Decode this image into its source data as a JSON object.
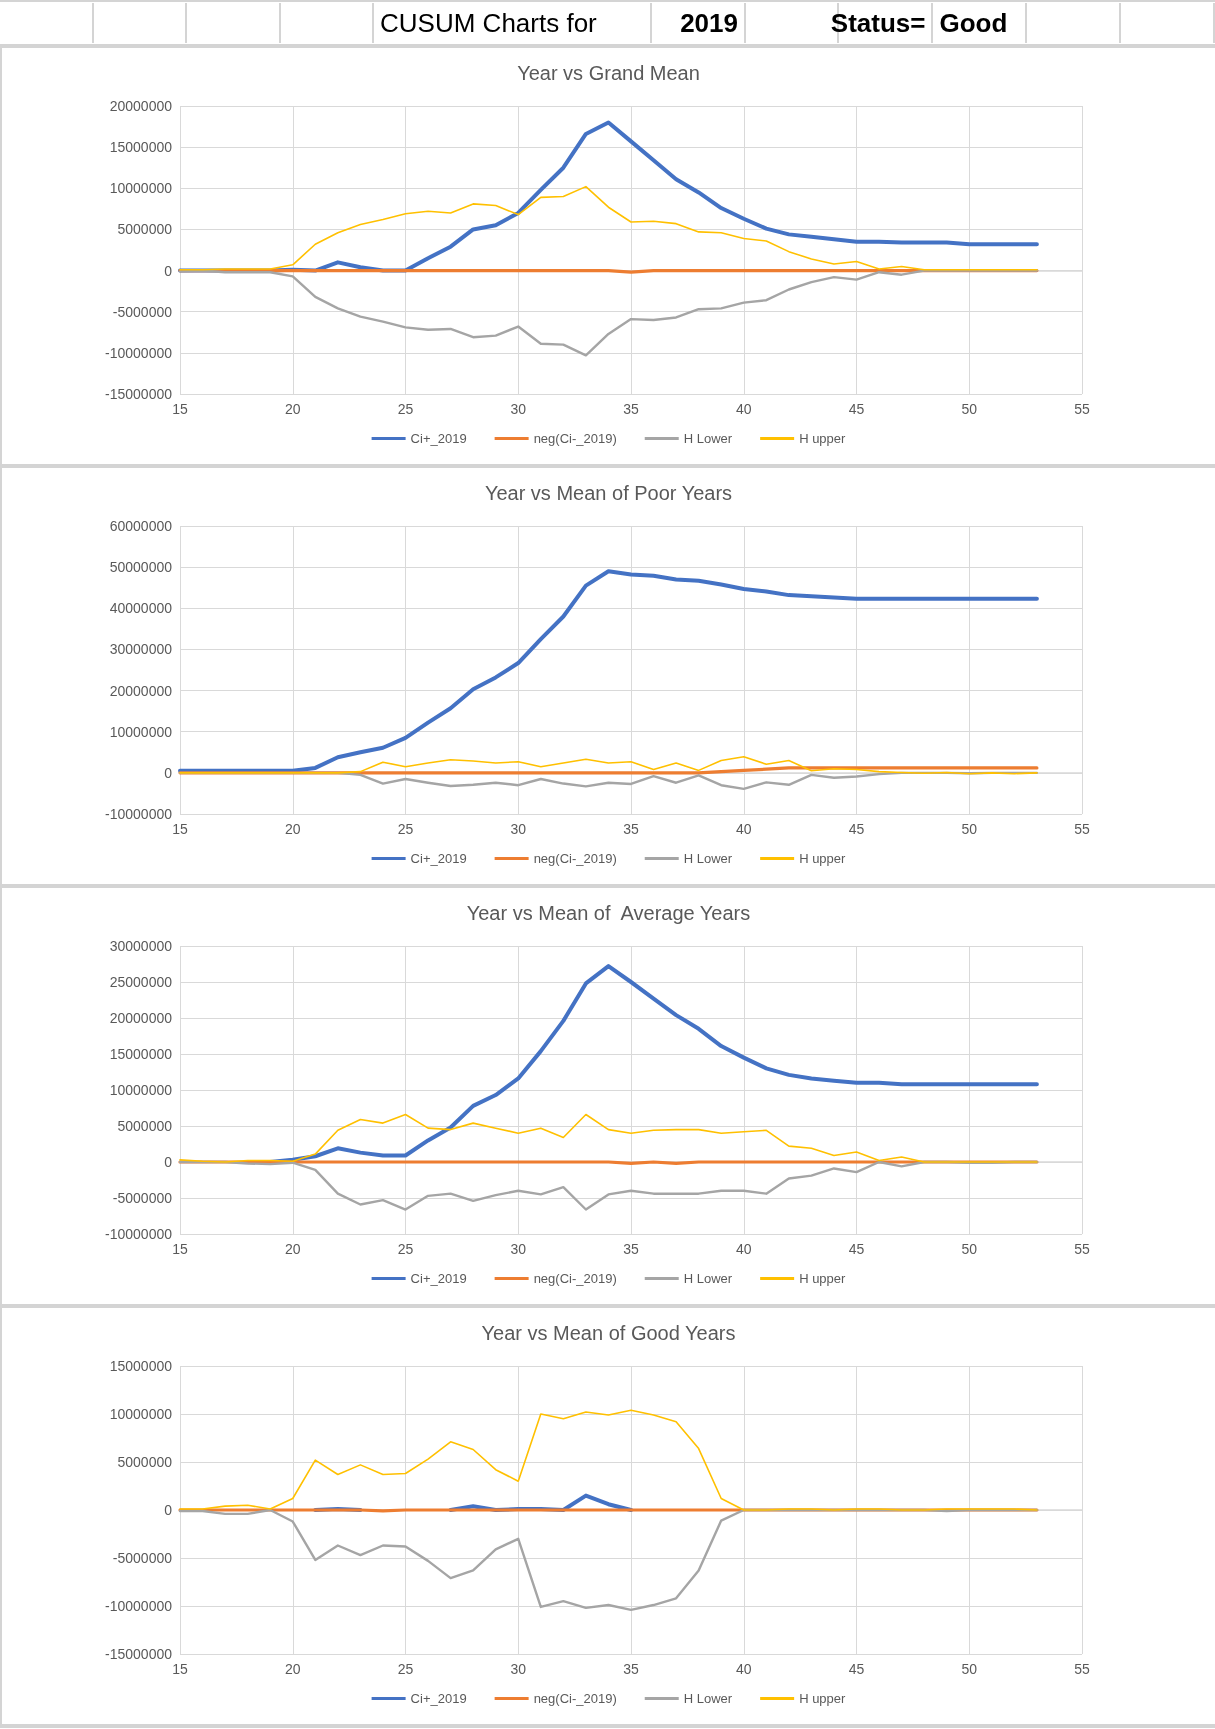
{
  "chart_data": [
    {
      "type": "other",
      "annotations": [
        "CUSUM Charts for",
        "2019",
        "Status=",
        "Good"
      ]
    },
    {
      "type": "line",
      "title": "Year vs Grand Mean",
      "x": [
        15,
        16,
        17,
        18,
        19,
        20,
        21,
        22,
        23,
        24,
        25,
        26,
        27,
        28,
        29,
        30,
        31,
        32,
        33,
        34,
        35,
        36,
        37,
        38,
        39,
        40,
        41,
        42,
        43,
        44,
        45,
        46,
        47,
        48,
        49,
        50,
        51,
        52,
        53
      ],
      "xlim": [
        15,
        55
      ],
      "xticks": [
        15,
        20,
        25,
        30,
        35,
        40,
        45,
        50,
        55
      ],
      "ylim": [
        -15000000,
        20000000
      ],
      "yticks": [
        -15000000,
        -10000000,
        -5000000,
        0,
        5000000,
        10000000,
        15000000,
        20000000
      ],
      "grid": true,
      "legend": "bottom",
      "marker": "none",
      "line_style": "solid",
      "series": [
        {
          "name": "Ci+_2019",
          "color": "#4472c4",
          "values": [
            0,
            0,
            0,
            0,
            0,
            100000.0,
            0,
            1000000.0,
            400000.0,
            0,
            0,
            1500000.0,
            2900000.0,
            5000000.0,
            5500000.0,
            7000000.0,
            9800000.0,
            12500000.0,
            16600000.0,
            18000000.0,
            15700000.0,
            13400000.0,
            11100000.0,
            9500000.0,
            7600000.0,
            6300000.0,
            5100000.0,
            4400000.0,
            4100000.0,
            3800000.0,
            3500000.0,
            3500000.0,
            3400000.0,
            3400000.0,
            3400000.0,
            3200000.0,
            3200000.0,
            3200000.0,
            3200000.0
          ]
        },
        {
          "name": "neg(Ci-_2019)",
          "color": "#ed7d31",
          "values": [
            0,
            0,
            0,
            0,
            0,
            0,
            0,
            0,
            0,
            0,
            0,
            0,
            0,
            0,
            0,
            0,
            0,
            0,
            0,
            0,
            -200000.0,
            0,
            0,
            0,
            0,
            0,
            0,
            0,
            0,
            0,
            0,
            0,
            0,
            0,
            0,
            0,
            0,
            0,
            0
          ]
        },
        {
          "name": "H Lower",
          "color": "#a5a5a5",
          "values": [
            -100000.0,
            0,
            -200000.0,
            -200000.0,
            -200000.0,
            -700000.0,
            -3200000.0,
            -4600000.0,
            -5600000.0,
            -6200000.0,
            -6900000.0,
            -7200000.0,
            -7100000.0,
            -8100000.0,
            -7900000.0,
            -6800000.0,
            -8900000.0,
            -9000000.0,
            -10300000.0,
            -7700000.0,
            -5900000.0,
            -6000000.0,
            -5700000.0,
            -4700000.0,
            -4600000.0,
            -3900000.0,
            -3600000.0,
            -2300000.0,
            -1400000.0,
            -800000.0,
            -1100000.0,
            -200000.0,
            -500000.0,
            0,
            0,
            0,
            0,
            0,
            0
          ]
        },
        {
          "name": "H upper",
          "color": "#ffc000",
          "values": [
            100000.0,
            100000.0,
            200000.0,
            200000.0,
            200000.0,
            700000.0,
            3200000.0,
            4600000.0,
            5600000.0,
            6200000.0,
            6900000.0,
            7200000.0,
            7000000.0,
            8100000.0,
            7900000.0,
            6800000.0,
            8900000.0,
            9000000.0,
            10200000.0,
            7700000.0,
            5900000.0,
            6000000.0,
            5700000.0,
            4700000.0,
            4600000.0,
            3900000.0,
            3600000.0,
            2300000.0,
            1400000.0,
            800000.0,
            1100000.0,
            200000.0,
            500000.0,
            100000.0,
            100000.0,
            100000.0,
            100000.0,
            100000.0,
            100000.0
          ]
        }
      ]
    },
    {
      "type": "line",
      "title": "Year vs Mean of Poor Years",
      "x": [
        15,
        16,
        17,
        18,
        19,
        20,
        21,
        22,
        23,
        24,
        25,
        26,
        27,
        28,
        29,
        30,
        31,
        32,
        33,
        34,
        35,
        36,
        37,
        38,
        39,
        40,
        41,
        42,
        43,
        44,
        45,
        46,
        47,
        48,
        49,
        50,
        51,
        52,
        53
      ],
      "xlim": [
        15,
        55
      ],
      "xticks": [
        15,
        20,
        25,
        30,
        35,
        40,
        45,
        50,
        55
      ],
      "ylim": [
        -10000000,
        60000000
      ],
      "yticks": [
        -10000000,
        0,
        10000000,
        20000000,
        30000000,
        40000000,
        50000000,
        60000000
      ],
      "grid": true,
      "legend": "bottom",
      "marker": "none",
      "line_style": "solid",
      "series": [
        {
          "name": "Ci+_2019",
          "color": "#4472c4",
          "values": [
            500000.0,
            500000.0,
            500000.0,
            500000.0,
            500000.0,
            500000.0,
            1200000.0,
            3800000.0,
            5000000.0,
            6100000.0,
            8500000.0,
            12200000.0,
            15700000.0,
            20300000.0,
            23200000.0,
            26700000.0,
            32500000.0,
            38000000.0,
            45500000.0,
            49000000.0,
            48200000.0,
            47900000.0,
            47000000.0,
            46700000.0,
            45800000.0,
            44700000.0,
            44100000.0,
            43200000.0,
            42900000.0,
            42600000.0,
            42300000.0,
            42300000.0,
            42300000.0,
            42300000.0,
            42300000.0,
            42300000.0,
            42300000.0,
            42300000.0,
            42300000.0
          ]
        },
        {
          "name": "neg(Ci-_2019)",
          "color": "#ed7d31",
          "values": [
            0,
            0,
            0,
            0,
            0,
            0,
            0,
            0,
            0,
            0,
            0,
            0,
            0,
            0,
            0,
            0,
            0,
            0,
            0,
            0,
            0,
            0,
            0,
            0,
            300000.0,
            600000.0,
            900000.0,
            1200000.0,
            1200000.0,
            1200000.0,
            1200000.0,
            1200000.0,
            1200000.0,
            1200000.0,
            1200000.0,
            1200000.0,
            1200000.0,
            1200000.0,
            1200000.0
          ]
        },
        {
          "name": "H Lower",
          "color": "#a5a5a5",
          "values": [
            0,
            0,
            0,
            0,
            0,
            0,
            0,
            0,
            -500000.0,
            -2600000.0,
            -1500000.0,
            -2400000.0,
            -3200000.0,
            -2900000.0,
            -2400000.0,
            -3000000.0,
            -1500000.0,
            -2600000.0,
            -3300000.0,
            -2400000.0,
            -2700000.0,
            -800000.0,
            -2400000.0,
            -600000.0,
            -3000000.0,
            -3900000.0,
            -2300000.0,
            -2900000.0,
            -500000.0,
            -1200000.0,
            -900000.0,
            -300000.0,
            0,
            0,
            0,
            -100000.0,
            0,
            0,
            0
          ]
        },
        {
          "name": "H upper",
          "color": "#ffc000",
          "values": [
            0,
            0,
            0,
            0,
            0,
            0,
            0,
            0,
            300000.0,
            2600000.0,
            1500000.0,
            2400000.0,
            3200000.0,
            2900000.0,
            2400000.0,
            2700000.0,
            1500000.0,
            2400000.0,
            3300000.0,
            2400000.0,
            2700000.0,
            800000.0,
            2400000.0,
            600000.0,
            3000000.0,
            3900000.0,
            2100000.0,
            3000000.0,
            500000.0,
            1000000.0,
            800000.0,
            300000.0,
            100000.0,
            -100000.0,
            100000.0,
            -200000.0,
            0,
            -200000.0,
            0
          ]
        }
      ]
    },
    {
      "type": "line",
      "title": "Year vs Mean of  Average Years",
      "x": [
        15,
        16,
        17,
        18,
        19,
        20,
        21,
        22,
        23,
        24,
        25,
        26,
        27,
        28,
        29,
        30,
        31,
        32,
        33,
        34,
        35,
        36,
        37,
        38,
        39,
        40,
        41,
        42,
        43,
        44,
        45,
        46,
        47,
        48,
        49,
        50,
        51,
        52,
        53
      ],
      "xlim": [
        15,
        55
      ],
      "xticks": [
        15,
        20,
        25,
        30,
        35,
        40,
        45,
        50,
        55
      ],
      "ylim": [
        -10000000,
        30000000
      ],
      "yticks": [
        -10000000,
        -5000000,
        0,
        5000000,
        10000000,
        15000000,
        20000000,
        25000000,
        30000000
      ],
      "grid": true,
      "legend": "bottom",
      "marker": "none",
      "line_style": "solid",
      "series": [
        {
          "name": "Ci+_2019",
          "color": "#4472c4",
          "values": [
            null,
            null,
            null,
            0,
            0,
            300000.0,
            800000.0,
            1900000.0,
            1300000.0,
            900000.0,
            900000.0,
            3000000.0,
            4800000.0,
            7800000.0,
            9300000.0,
            11600000.0,
            15400000.0,
            19600000.0,
            24800000.0,
            27200000.0,
            25000000.0,
            22700000.0,
            20400000.0,
            18500000.0,
            16100000.0,
            14500000.0,
            13000000.0,
            12100000.0,
            11600000.0,
            11300000.0,
            11000000.0,
            11000000.0,
            10800000.0,
            10800000.0,
            10800000.0,
            10800000.0,
            10800000.0,
            10800000.0,
            10800000.0
          ]
        },
        {
          "name": "neg(Ci-_2019)",
          "color": "#ed7d31",
          "values": [
            0,
            0,
            0,
            0,
            0,
            0,
            0,
            0,
            0,
            0,
            0,
            0,
            0,
            0,
            0,
            0,
            0,
            0,
            0,
            0,
            -200000.0,
            0,
            -200000.0,
            0,
            0,
            0,
            0,
            0,
            0,
            0,
            0,
            0,
            0,
            0,
            0,
            0,
            0,
            0,
            0
          ]
        },
        {
          "name": "H Lower",
          "color": "#a5a5a5",
          "values": [
            0,
            0,
            0,
            -200000.0,
            -300000.0,
            -100000.0,
            -1100000.0,
            -4400000.0,
            -5900000.0,
            -5300000.0,
            -6600000.0,
            -4700000.0,
            -4400000.0,
            -5400000.0,
            -4600000.0,
            -4000000.0,
            -4500000.0,
            -3500000.0,
            -6600000.0,
            -4500000.0,
            -4000000.0,
            -4400000.0,
            -4400000.0,
            -4400000.0,
            -4000000.0,
            -4000000.0,
            -4400000.0,
            -2300000.0,
            -1900000.0,
            -900000.0,
            -1400000.0,
            0,
            -600000.0,
            0,
            0,
            -100000.0,
            -100000.0,
            0,
            0
          ]
        },
        {
          "name": "H upper",
          "color": "#ffc000",
          "values": [
            300000.0,
            100000.0,
            0,
            200000.0,
            200000.0,
            100000.0,
            1100000.0,
            4400000.0,
            5900000.0,
            5400000.0,
            6600000.0,
            4700000.0,
            4500000.0,
            5400000.0,
            4700000.0,
            4000000.0,
            4700000.0,
            3400000.0,
            6600000.0,
            4500000.0,
            4000000.0,
            4400000.0,
            4500000.0,
            4500000.0,
            4000000.0,
            4200000.0,
            4400000.0,
            2200000.0,
            1900000.0,
            900000.0,
            1400000.0,
            200000.0,
            700000.0,
            0,
            0,
            0,
            0,
            0,
            0
          ]
        }
      ]
    },
    {
      "type": "line",
      "title": "Year vs Mean of Good Years",
      "x": [
        15,
        16,
        17,
        18,
        19,
        20,
        21,
        22,
        23,
        24,
        25,
        26,
        27,
        28,
        29,
        30,
        31,
        32,
        33,
        34,
        35,
        36,
        37,
        38,
        39,
        40,
        41,
        42,
        43,
        44,
        45,
        46,
        47,
        48,
        49,
        50,
        51,
        52,
        53
      ],
      "xlim": [
        15,
        55
      ],
      "xticks": [
        15,
        20,
        25,
        30,
        35,
        40,
        45,
        50,
        55
      ],
      "ylim": [
        -15000000,
        15000000
      ],
      "yticks": [
        -15000000,
        -10000000,
        -5000000,
        0,
        5000000,
        10000000,
        15000000
      ],
      "grid": true,
      "legend": "bottom",
      "marker": "none",
      "line_style": "solid",
      "series": [
        {
          "name": "Ci+_2019",
          "color": "#4472c4",
          "values": [
            null,
            null,
            null,
            null,
            null,
            null,
            0,
            100000.0,
            0,
            null,
            null,
            null,
            0,
            400000.0,
            0,
            100000.0,
            100000.0,
            0,
            1500000.0,
            600000.0,
            0,
            null,
            null,
            null,
            null,
            null,
            null,
            null,
            null,
            null,
            null,
            null,
            null,
            null,
            null,
            null,
            null,
            null,
            null
          ]
        },
        {
          "name": "neg(Ci-_2019)",
          "color": "#ed7d31",
          "values": [
            0,
            0,
            0,
            0,
            0,
            0,
            0,
            0,
            0,
            -100000.0,
            0,
            0,
            0,
            0,
            0,
            0,
            0,
            0,
            0,
            0,
            0,
            0,
            0,
            0,
            0,
            0,
            0,
            0,
            0,
            0,
            0,
            0,
            0,
            0,
            0,
            0,
            0,
            0,
            0
          ]
        },
        {
          "name": "H Lower",
          "color": "#a5a5a5",
          "values": [
            -100000.0,
            -100000.0,
            -400000.0,
            -400000.0,
            0,
            -1200000.0,
            -5200000.0,
            -3700000.0,
            -4700000.0,
            -3700000.0,
            -3800000.0,
            -5300000.0,
            -7100000.0,
            -6300000.0,
            -4100000.0,
            -3000000.0,
            -10100000.0,
            -9500000.0,
            -10200000.0,
            -9900000.0,
            -10400000.0,
            -9900000.0,
            -9200000.0,
            -6300000.0,
            -1100000.0,
            0,
            0,
            0,
            0,
            0,
            0,
            0,
            0,
            0,
            -100000.0,
            0,
            0,
            0,
            0
          ]
        },
        {
          "name": "H upper",
          "color": "#ffc000",
          "values": [
            100000.0,
            100000.0,
            400000.0,
            500000.0,
            100000.0,
            1200000.0,
            5200000.0,
            3700000.0,
            4700000.0,
            3700000.0,
            3800000.0,
            5300000.0,
            7100000.0,
            6300000.0,
            4200000.0,
            3000000.0,
            10000000.0,
            9500000.0,
            10200000.0,
            9900000.0,
            10400000.0,
            9900000.0,
            9200000.0,
            6400000.0,
            1200000.0,
            0,
            0,
            100000.0,
            100000.0,
            0,
            100000.0,
            100000.0,
            0,
            0,
            100000.0,
            100000.0,
            100000.0,
            100000.0,
            0
          ]
        }
      ]
    }
  ]
}
